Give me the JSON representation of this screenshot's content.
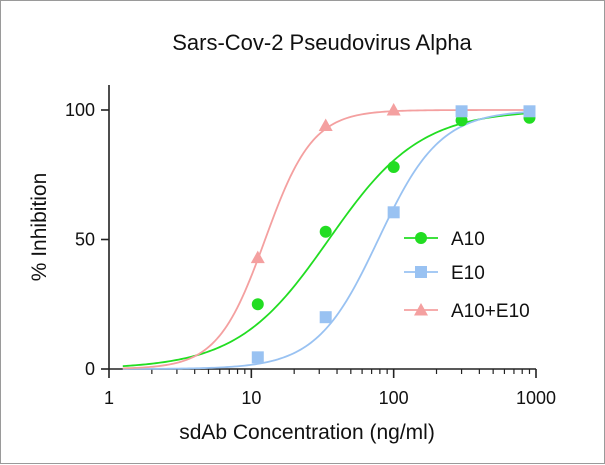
{
  "chart_data": {
    "type": "scatter",
    "title": "Sars-Cov-2 Pseudovirus Alpha",
    "xlabel": "sdAb Concentration (ng/ml)",
    "ylabel": "% Inhibition",
    "x_scale": "log",
    "xlim": [
      1,
      1000
    ],
    "ylim": [
      0,
      100
    ],
    "x_ticks": [
      1,
      10,
      100,
      1000
    ],
    "x_tick_labels": [
      "1",
      "10",
      "100",
      "1000"
    ],
    "y_ticks": [
      0,
      50,
      100
    ],
    "y_tick_labels": [
      "0",
      "50",
      "100"
    ],
    "grid": false,
    "legend_position": "right",
    "series": [
      {
        "name": "A10",
        "marker": "circle",
        "color": "#22dd22",
        "x": [
          11.1,
          33.3,
          100,
          300,
          900
        ],
        "y": [
          25,
          53,
          78,
          96,
          97
        ],
        "fit": {
          "ec50": 35,
          "hill": 1.35,
          "top": 100,
          "bottom": 0
        }
      },
      {
        "name": "E10",
        "marker": "square",
        "color": "#99c2f2",
        "x": [
          11.1,
          33.3,
          100,
          300,
          900
        ],
        "y": [
          4.5,
          20,
          60.5,
          99.5,
          99.5
        ],
        "fit": {
          "ec50": 78,
          "hill": 2.0,
          "top": 100,
          "bottom": 0
        }
      },
      {
        "name": "A10+E10",
        "marker": "triangle",
        "color": "#f4a0a0",
        "x": [
          11.1,
          33.3,
          100
        ],
        "y": [
          43,
          94,
          100
        ],
        "fit": {
          "ec50": 12.5,
          "hill": 2.6,
          "top": 100,
          "bottom": 0
        }
      }
    ]
  }
}
